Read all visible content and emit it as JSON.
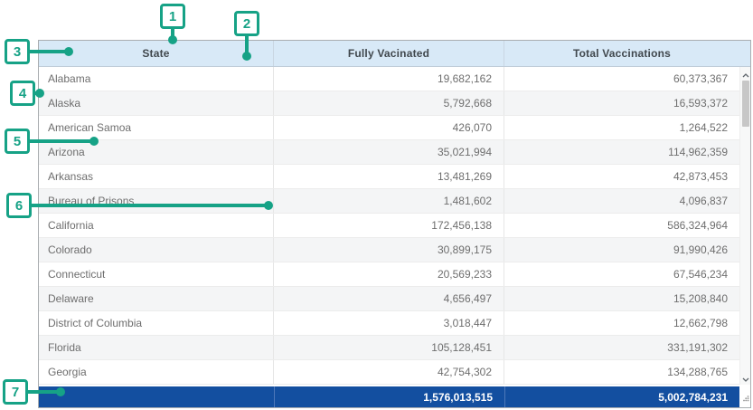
{
  "colors": {
    "annotation_accent": "#16a286",
    "header_bg": "#d8e9f7",
    "summary_row_bg": "#134fa0",
    "stripe_bg": "#f4f5f6"
  },
  "table": {
    "columns": [
      {
        "label": "State"
      },
      {
        "label": "Fully Vacinated"
      },
      {
        "label": "Total Vaccinations"
      }
    ],
    "rows": [
      [
        "Alabama",
        "19,682,162",
        "60,373,367"
      ],
      [
        "Alaska",
        "5,792,668",
        "16,593,372"
      ],
      [
        "American Samoa",
        "426,070",
        "1,264,522"
      ],
      [
        "Arizona",
        "35,021,994",
        "114,962,359"
      ],
      [
        "Arkansas",
        "13,481,269",
        "42,873,453"
      ],
      [
        "Bureau of Prisons",
        "1,481,602",
        "4,096,837"
      ],
      [
        "California",
        "172,456,138",
        "586,324,964"
      ],
      [
        "Colorado",
        "30,899,175",
        "91,990,426"
      ],
      [
        "Connecticut",
        "20,569,233",
        "67,546,234"
      ],
      [
        "Delaware",
        "4,656,497",
        "15,208,840"
      ],
      [
        "District of Columbia",
        "3,018,447",
        "12,662,798"
      ],
      [
        "Florida",
        "105,128,451",
        "331,191,302"
      ],
      [
        "Georgia",
        "42,754,302",
        "134,288,765"
      ]
    ],
    "summary_row": {
      "state": "",
      "fully_vacinated": "1,576,013,515",
      "total_vaccinations": "5,002,784,231"
    }
  },
  "annotations": {
    "callouts": [
      {
        "label": "1"
      },
      {
        "label": "2"
      },
      {
        "label": "3"
      },
      {
        "label": "4"
      },
      {
        "label": "5"
      },
      {
        "label": "6"
      },
      {
        "label": "7"
      }
    ]
  }
}
